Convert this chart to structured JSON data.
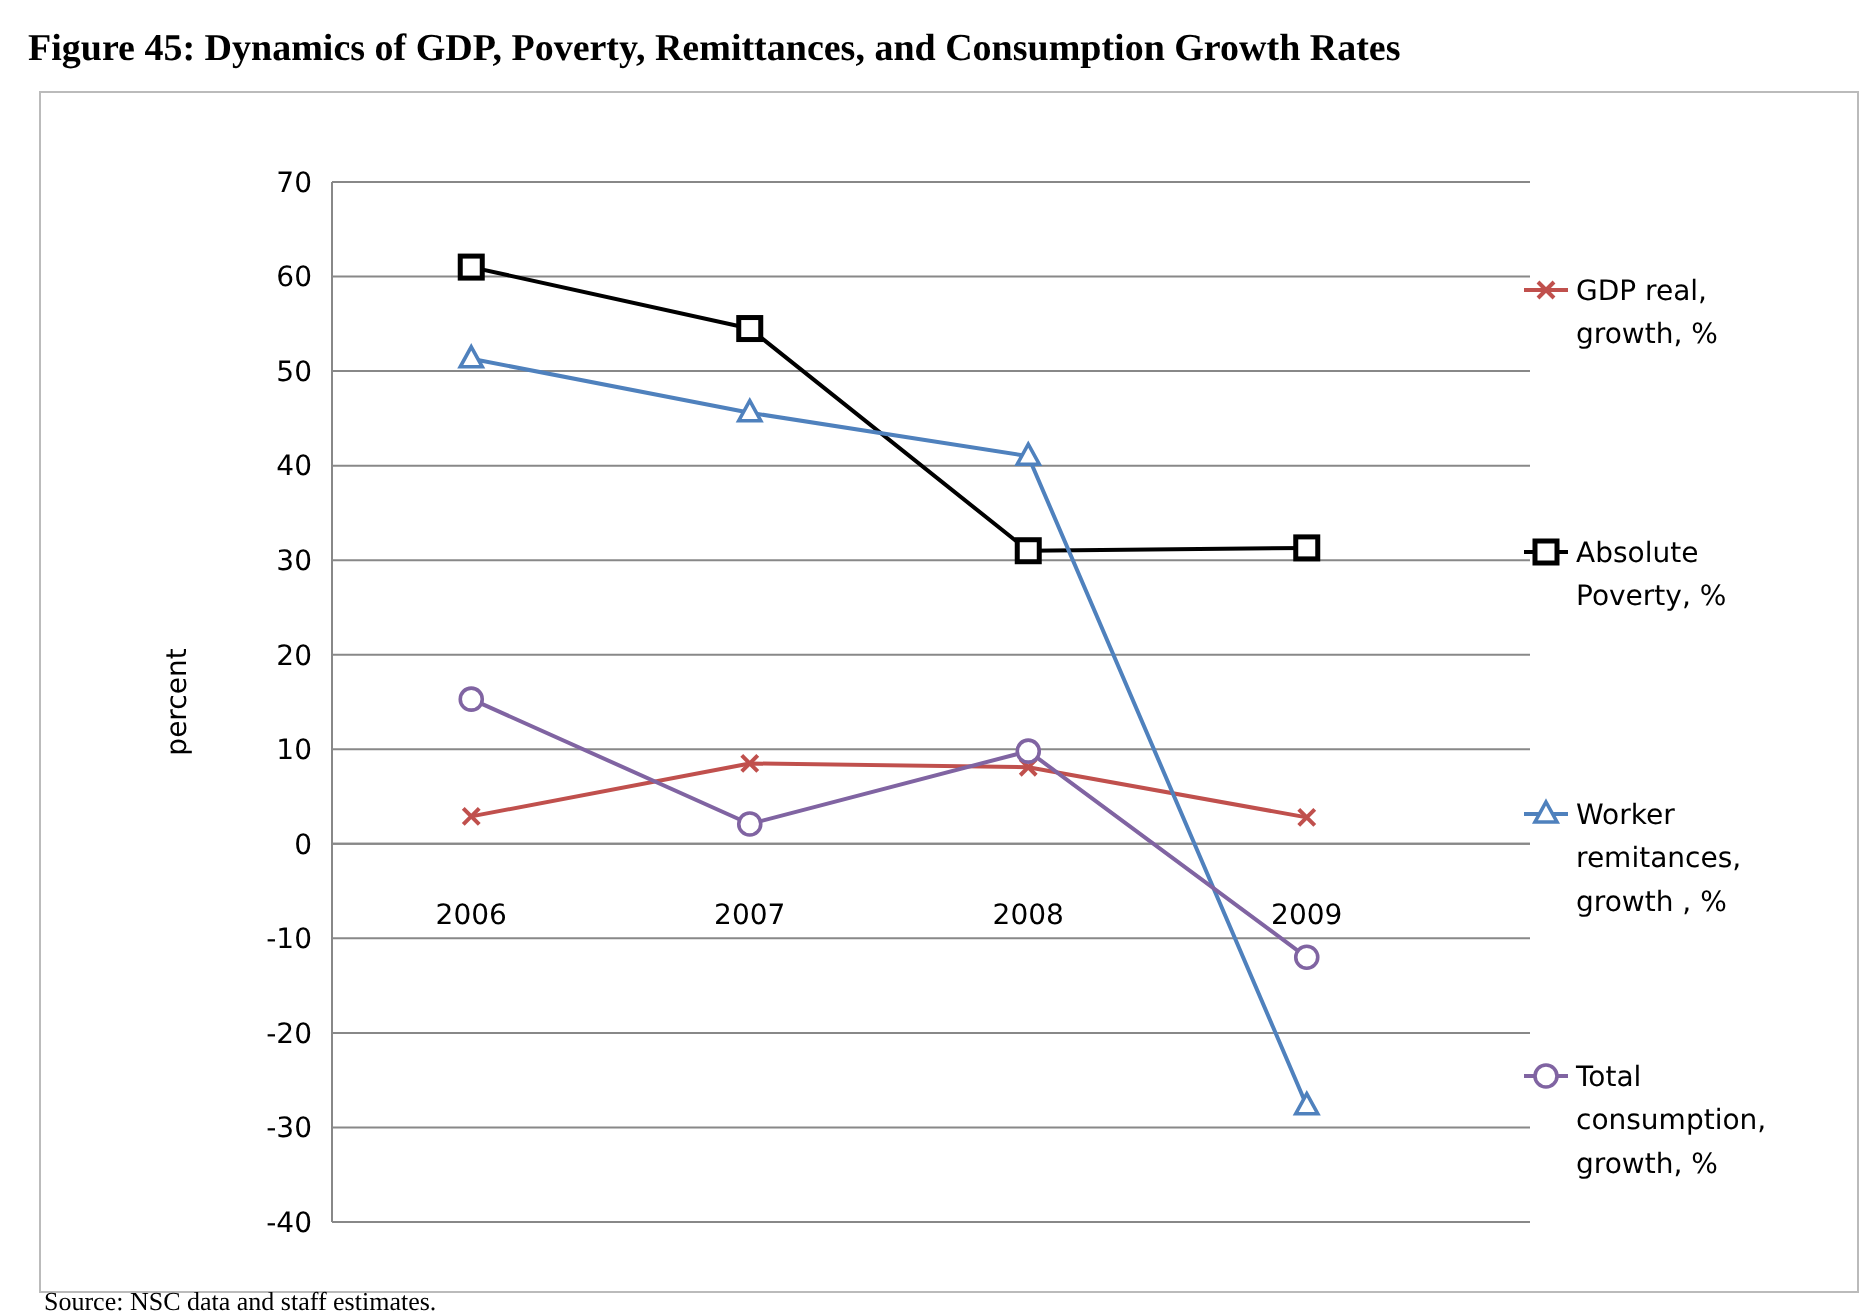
{
  "chart_data": {
    "type": "line",
    "title": "Figure 45: Dynamics of GDP, Poverty, Remittances, and Consumption Growth Rates",
    "ylabel": "percent",
    "categories": [
      "2006",
      "2007",
      "2008",
      "2009"
    ],
    "series": [
      {
        "name": "GDP real, growth, %",
        "color": "#c0504d",
        "marker": "cross",
        "values": [
          2.9,
          8.5,
          8.1,
          2.8
        ]
      },
      {
        "name": "Absolute Poverty, %",
        "color": "#000000",
        "marker": "square",
        "values": [
          61.0,
          54.5,
          31.0,
          31.3
        ]
      },
      {
        "name": "Worker remitances, growth , %",
        "color": "#4f81bd",
        "marker": "triangle",
        "values": [
          51.3,
          45.6,
          41.0,
          -27.7
        ]
      },
      {
        "name": "Total consumption, growth, %",
        "color": "#8064a2",
        "marker": "circle",
        "values": [
          15.3,
          2.1,
          9.8,
          -12.0
        ]
      }
    ],
    "ylim": [
      -40,
      70
    ],
    "yticks": [
      -40,
      -30,
      -20,
      -10,
      0,
      10,
      20,
      30,
      40,
      50,
      60,
      70
    ],
    "grid": "y",
    "legend": "right",
    "annotations": [
      "Source: NSC data and staff estimates."
    ]
  }
}
